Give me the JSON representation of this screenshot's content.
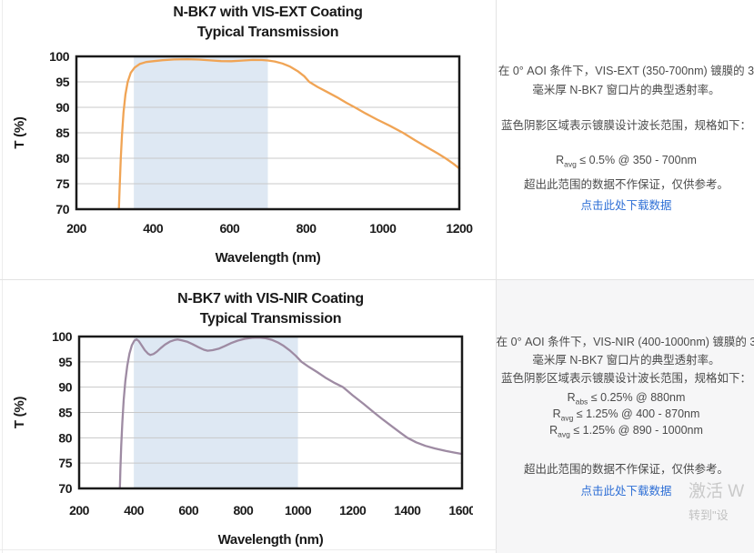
{
  "colors": {
    "vis_ext_curve": "#F0A455",
    "vis_nir_curve": "#9E8BA3",
    "shaded_band": "#DEE8F3",
    "gridline": "#C8C8C8",
    "plot_border": "#1A1A1A",
    "body_text": "#4A4A4A",
    "link_blue": "#2E6FD6",
    "bottom_panel_bg": "#F6F6F7"
  },
  "chart_data": [
    {
      "type": "line",
      "title_line1": "N-BK7 with VIS-EXT Coating",
      "title_line2": "Typical Transmission",
      "xlabel": "Wavelength (nm)",
      "ylabel": "T (%)",
      "xlim": [
        200,
        1200
      ],
      "ylim": [
        70,
        100
      ],
      "xticks": [
        200,
        400,
        600,
        800,
        1000,
        1200
      ],
      "yticks": [
        70,
        75,
        80,
        85,
        90,
        95,
        100
      ],
      "grid": "horizontal-only",
      "legend": "none",
      "shaded_region": {
        "x0": 350,
        "x1": 700
      },
      "line_color": "#F0A455",
      "series": [
        {
          "name": "Typical Transmission",
          "points": [
            [
              311,
              70
            ],
            [
              313,
              74.5
            ],
            [
              316,
              80
            ],
            [
              319,
              84.5
            ],
            [
              323,
              89
            ],
            [
              328,
              92.5
            ],
            [
              334,
              95
            ],
            [
              342,
              96.8
            ],
            [
              352,
              97.8
            ],
            [
              365,
              98.5
            ],
            [
              382,
              98.9
            ],
            [
              400,
              99.05
            ],
            [
              425,
              99.25
            ],
            [
              455,
              99.4
            ],
            [
              490,
              99.45
            ],
            [
              520,
              99.38
            ],
            [
              550,
              99.22
            ],
            [
              578,
              99.08
            ],
            [
              605,
              99.05
            ],
            [
              632,
              99.18
            ],
            [
              660,
              99.3
            ],
            [
              685,
              99.28
            ],
            [
              700,
              99.2
            ],
            [
              718,
              99.0
            ],
            [
              738,
              98.6
            ],
            [
              758,
              98.0
            ],
            [
              778,
              97.1
            ],
            [
              795,
              96.1
            ],
            [
              808,
              95.0
            ],
            [
              830,
              94.0
            ],
            [
              855,
              93.0
            ],
            [
              880,
              92.0
            ],
            [
              905,
              90.9
            ],
            [
              927,
              90.0
            ],
            [
              955,
              88.8
            ],
            [
              985,
              87.6
            ],
            [
              1018,
              86.4
            ],
            [
              1053,
              85.0
            ],
            [
              1085,
              83.5
            ],
            [
              1115,
              82.2
            ],
            [
              1145,
              80.9
            ],
            [
              1164,
              80.0
            ],
            [
              1185,
              78.9
            ],
            [
              1200,
              78.0
            ]
          ]
        }
      ]
    },
    {
      "type": "line",
      "title_line1": "N-BK7 with VIS-NIR Coating",
      "title_line2": "Typical Transmission",
      "xlabel": "Wavelength (nm)",
      "ylabel": "T (%)",
      "xlim": [
        200,
        1600
      ],
      "ylim": [
        70,
        100
      ],
      "xticks": [
        200,
        400,
        600,
        800,
        1000,
        1200,
        1400,
        1600
      ],
      "yticks": [
        70,
        75,
        80,
        85,
        90,
        95,
        100
      ],
      "grid": "horizontal-only",
      "legend": "none",
      "shaded_region": {
        "x0": 400,
        "x1": 1000
      },
      "line_color": "#9E8BA3",
      "series": [
        {
          "name": "Typical Transmission",
          "points": [
            [
              349,
              70
            ],
            [
              351,
              74
            ],
            [
              354,
              78.5
            ],
            [
              358,
              83
            ],
            [
              363,
              87.5
            ],
            [
              369,
              91.2
            ],
            [
              376,
              94.2
            ],
            [
              384,
              96.6
            ],
            [
              393,
              98.3
            ],
            [
              402,
              99.2
            ],
            [
              410,
              99.45
            ],
            [
              418,
              99.1
            ],
            [
              428,
              98.3
            ],
            [
              440,
              97.3
            ],
            [
              452,
              96.6
            ],
            [
              460,
              96.35
            ],
            [
              472,
              96.55
            ],
            [
              484,
              97.0
            ],
            [
              498,
              97.7
            ],
            [
              514,
              98.4
            ],
            [
              532,
              99.0
            ],
            [
              548,
              99.3
            ],
            [
              560,
              99.4
            ],
            [
              576,
              99.25
            ],
            [
              594,
              99.0
            ],
            [
              614,
              98.5
            ],
            [
              636,
              97.9
            ],
            [
              656,
              97.4
            ],
            [
              670,
              97.2
            ],
            [
              688,
              97.3
            ],
            [
              710,
              97.6
            ],
            [
              732,
              98.1
            ],
            [
              756,
              98.7
            ],
            [
              780,
              99.2
            ],
            [
              806,
              99.55
            ],
            [
              832,
              99.75
            ],
            [
              858,
              99.8
            ],
            [
              882,
              99.65
            ],
            [
              904,
              99.35
            ],
            [
              926,
              98.85
            ],
            [
              948,
              98.15
            ],
            [
              970,
              97.25
            ],
            [
              992,
              96.2
            ],
            [
              1013,
              95.0
            ],
            [
              1040,
              94.0
            ],
            [
              1070,
              93.0
            ],
            [
              1100,
              91.9
            ],
            [
              1135,
              90.8
            ],
            [
              1165,
              90.0
            ],
            [
              1200,
              88.4
            ],
            [
              1240,
              86.7
            ],
            [
              1278,
              85.0
            ],
            [
              1312,
              83.55
            ],
            [
              1345,
              82.2
            ],
            [
              1375,
              81.0
            ],
            [
              1400,
              80.0
            ],
            [
              1432,
              79.1
            ],
            [
              1466,
              78.4
            ],
            [
              1500,
              77.9
            ],
            [
              1540,
              77.4
            ],
            [
              1570,
              77.1
            ],
            [
              1600,
              76.8
            ]
          ]
        }
      ]
    }
  ],
  "panels": {
    "top": {
      "desc_line1": "在 0° AOI 条件下，VIS-EXT (350-700nm) 镀膜的 3",
      "desc_line2": "毫米厚 N-BK7 窗口片的典型透射率。",
      "note": "蓝色阴影区域表示镀膜设计波长范围，规格如下：",
      "specs": [
        {
          "pre": "R",
          "sub": "avg",
          "rest": " ≤ 0.5% @ 350 - 700nm"
        }
      ],
      "disclaimer": "超出此范围的数据不作保证，仅供参考。",
      "link": "点击此处下载数据"
    },
    "bottom": {
      "desc_line1": "在 0° AOI 条件下，VIS-NIR (400-1000nm) 镀膜的 3",
      "desc_line2": "毫米厚 N-BK7 窗口片的典型透射率。",
      "note": "蓝色阴影区域表示镀膜设计波长范围，规格如下：",
      "specs": [
        {
          "pre": "R",
          "sub": "abs",
          "rest": " ≤ 0.25% @ 880nm"
        },
        {
          "pre": "R",
          "sub": "avg",
          "rest": " ≤ 1.25% @ 400 - 870nm"
        },
        {
          "pre": "R",
          "sub": "avg",
          "rest": " ≤ 1.25% @ 890 - 1000nm"
        }
      ],
      "disclaimer": "超出此范围的数据不作保证，仅供参考。",
      "link": "点击此处下载数据"
    }
  },
  "watermark": {
    "line1": "激活 W",
    "line2": "转到\"设"
  }
}
